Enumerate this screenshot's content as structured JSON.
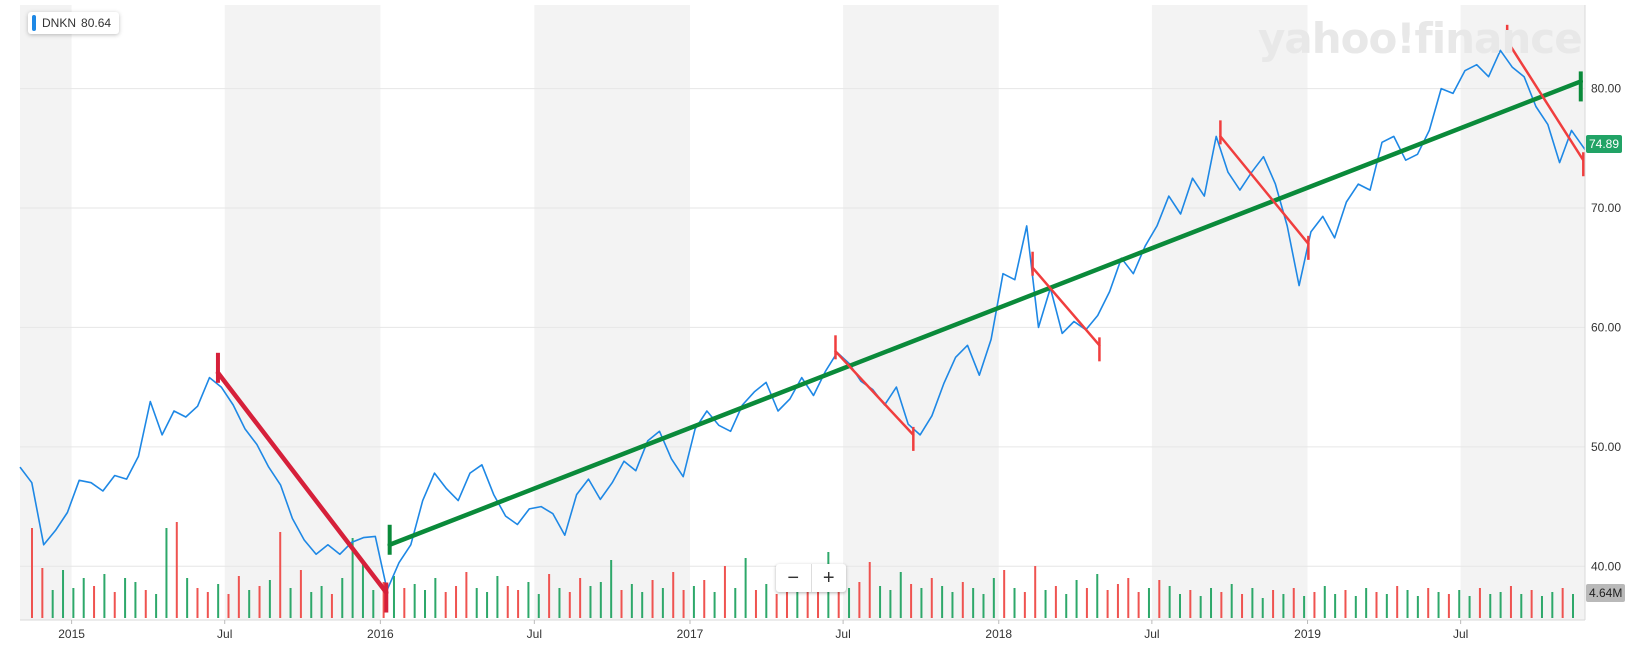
{
  "legend": {
    "symbol": "DNKN",
    "value": "80.64"
  },
  "watermark": "yahoo!finance",
  "zoom": {
    "minus_label": "−",
    "plus_label": "+"
  },
  "badges": {
    "last_price": "74.89",
    "last_volume": "4.64M"
  },
  "colors": {
    "price_line": "#1e88e5",
    "volume_up": "#2ea86a",
    "volume_down": "#ef5350",
    "trend_up": "#0a8a3a",
    "trend_down": "#d6203a",
    "band": "#f3f3f3"
  },
  "chart_data": {
    "type": "line",
    "ticker": "DNKN",
    "y_axis": {
      "ticks": [
        40,
        50,
        60,
        70,
        80
      ],
      "tick_labels": [
        "40.00",
        "50.00",
        "60.00",
        "70.00",
        "80.00"
      ],
      "range": [
        35.5,
        87
      ]
    },
    "x_axis": {
      "range": [
        "2014-11-01",
        "2019-11-25"
      ],
      "ticks": [
        {
          "date": "2015-01-01",
          "label": "2015"
        },
        {
          "date": "2015-07-01",
          "label": "Jul"
        },
        {
          "date": "2016-01-01",
          "label": "2016"
        },
        {
          "date": "2016-07-01",
          "label": "Jul"
        },
        {
          "date": "2017-01-01",
          "label": "2017"
        },
        {
          "date": "2017-07-01",
          "label": "Jul"
        },
        {
          "date": "2018-01-01",
          "label": "2018"
        },
        {
          "date": "2018-07-01",
          "label": "Jul"
        },
        {
          "date": "2019-01-01",
          "label": "2019"
        },
        {
          "date": "2019-07-01",
          "label": "Jul"
        }
      ]
    },
    "price_series": [
      [
        "2014-11-01",
        48.3
      ],
      [
        "2014-11-15",
        47.0
      ],
      [
        "2014-11-29",
        41.8
      ],
      [
        "2014-12-13",
        43.0
      ],
      [
        "2014-12-27",
        44.5
      ],
      [
        "2015-01-10",
        47.2
      ],
      [
        "2015-01-24",
        47.0
      ],
      [
        "2015-02-07",
        46.3
      ],
      [
        "2015-02-21",
        47.6
      ],
      [
        "2015-03-07",
        47.3
      ],
      [
        "2015-03-21",
        49.2
      ],
      [
        "2015-04-04",
        53.8
      ],
      [
        "2015-04-18",
        51.0
      ],
      [
        "2015-05-02",
        53.0
      ],
      [
        "2015-05-16",
        52.5
      ],
      [
        "2015-05-30",
        53.4
      ],
      [
        "2015-06-13",
        55.8
      ],
      [
        "2015-06-27",
        55.0
      ],
      [
        "2015-07-11",
        53.5
      ],
      [
        "2015-07-25",
        51.5
      ],
      [
        "2015-08-08",
        50.2
      ],
      [
        "2015-08-22",
        48.3
      ],
      [
        "2015-09-05",
        46.8
      ],
      [
        "2015-09-19",
        44.0
      ],
      [
        "2015-10-03",
        42.2
      ],
      [
        "2015-10-17",
        41.0
      ],
      [
        "2015-10-31",
        41.8
      ],
      [
        "2015-11-14",
        41.0
      ],
      [
        "2015-11-28",
        42.0
      ],
      [
        "2015-12-12",
        42.4
      ],
      [
        "2015-12-26",
        42.5
      ],
      [
        "2016-01-09",
        38.0
      ],
      [
        "2016-01-23",
        40.3
      ],
      [
        "2016-02-06",
        41.8
      ],
      [
        "2016-02-20",
        45.5
      ],
      [
        "2016-03-05",
        47.8
      ],
      [
        "2016-03-19",
        46.5
      ],
      [
        "2016-04-02",
        45.5
      ],
      [
        "2016-04-16",
        47.8
      ],
      [
        "2016-04-30",
        48.5
      ],
      [
        "2016-05-14",
        46.0
      ],
      [
        "2016-05-28",
        44.2
      ],
      [
        "2016-06-11",
        43.5
      ],
      [
        "2016-06-25",
        44.8
      ],
      [
        "2016-07-09",
        45.0
      ],
      [
        "2016-07-23",
        44.4
      ],
      [
        "2016-08-06",
        42.6
      ],
      [
        "2016-08-20",
        46.0
      ],
      [
        "2016-09-03",
        47.3
      ],
      [
        "2016-09-17",
        45.6
      ],
      [
        "2016-10-01",
        47.0
      ],
      [
        "2016-10-15",
        48.8
      ],
      [
        "2016-10-29",
        48.0
      ],
      [
        "2016-11-12",
        50.5
      ],
      [
        "2016-11-26",
        51.3
      ],
      [
        "2016-12-10",
        49.0
      ],
      [
        "2016-12-24",
        47.5
      ],
      [
        "2017-01-07",
        51.5
      ],
      [
        "2017-01-21",
        53.0
      ],
      [
        "2017-02-04",
        51.8
      ],
      [
        "2017-02-18",
        51.3
      ],
      [
        "2017-03-04",
        53.5
      ],
      [
        "2017-03-18",
        54.6
      ],
      [
        "2017-04-01",
        55.4
      ],
      [
        "2017-04-15",
        53.0
      ],
      [
        "2017-04-29",
        54.0
      ],
      [
        "2017-05-13",
        55.8
      ],
      [
        "2017-05-27",
        54.3
      ],
      [
        "2017-06-10",
        56.3
      ],
      [
        "2017-06-24",
        57.9
      ],
      [
        "2017-07-08",
        57.0
      ],
      [
        "2017-07-22",
        55.5
      ],
      [
        "2017-08-05",
        54.8
      ],
      [
        "2017-08-19",
        53.5
      ],
      [
        "2017-09-02",
        55.0
      ],
      [
        "2017-09-16",
        51.9
      ],
      [
        "2017-09-30",
        51.0
      ],
      [
        "2017-10-14",
        52.6
      ],
      [
        "2017-10-28",
        55.3
      ],
      [
        "2017-11-11",
        57.5
      ],
      [
        "2017-11-25",
        58.5
      ],
      [
        "2017-12-09",
        56.0
      ],
      [
        "2017-12-23",
        59.0
      ],
      [
        "2018-01-06",
        64.5
      ],
      [
        "2018-01-20",
        64.0
      ],
      [
        "2018-02-03",
        68.5
      ],
      [
        "2018-02-17",
        60.0
      ],
      [
        "2018-03-03",
        63.3
      ],
      [
        "2018-03-17",
        59.5
      ],
      [
        "2018-03-31",
        60.5
      ],
      [
        "2018-04-14",
        59.8
      ],
      [
        "2018-04-28",
        61.0
      ],
      [
        "2018-05-12",
        63.0
      ],
      [
        "2018-05-26",
        65.8
      ],
      [
        "2018-06-09",
        64.5
      ],
      [
        "2018-06-23",
        66.8
      ],
      [
        "2018-07-07",
        68.5
      ],
      [
        "2018-07-21",
        71.0
      ],
      [
        "2018-08-04",
        69.5
      ],
      [
        "2018-08-18",
        72.5
      ],
      [
        "2018-09-01",
        71.0
      ],
      [
        "2018-09-15",
        76.0
      ],
      [
        "2018-09-29",
        73.0
      ],
      [
        "2018-10-13",
        71.5
      ],
      [
        "2018-10-27",
        73.0
      ],
      [
        "2018-11-10",
        74.3
      ],
      [
        "2018-11-24",
        72.0
      ],
      [
        "2018-12-08",
        68.5
      ],
      [
        "2018-12-22",
        63.5
      ],
      [
        "2019-01-05",
        68.0
      ],
      [
        "2019-01-19",
        69.3
      ],
      [
        "2019-02-02",
        67.5
      ],
      [
        "2019-02-16",
        70.5
      ],
      [
        "2019-03-02",
        72.0
      ],
      [
        "2019-03-16",
        71.5
      ],
      [
        "2019-03-30",
        75.5
      ],
      [
        "2019-04-13",
        76.0
      ],
      [
        "2019-04-27",
        74.0
      ],
      [
        "2019-05-11",
        74.5
      ],
      [
        "2019-05-25",
        76.5
      ],
      [
        "2019-06-08",
        80.0
      ],
      [
        "2019-06-22",
        79.6
      ],
      [
        "2019-07-06",
        81.5
      ],
      [
        "2019-07-20",
        82.0
      ],
      [
        "2019-08-03",
        81.0
      ],
      [
        "2019-08-17",
        83.2
      ],
      [
        "2019-08-31",
        81.8
      ],
      [
        "2019-09-14",
        81.0
      ],
      [
        "2019-09-28",
        78.5
      ],
      [
        "2019-10-12",
        77.0
      ],
      [
        "2019-10-26",
        73.8
      ],
      [
        "2019-11-09",
        76.5
      ],
      [
        "2019-11-25",
        74.89
      ]
    ],
    "volume": {
      "unit": "M",
      "bars": [
        [
          0,
          4.5,
          "down"
        ],
        [
          1,
          2.5,
          "down"
        ],
        [
          2,
          1.4,
          "up"
        ],
        [
          3,
          2.4,
          "up"
        ],
        [
          4,
          1.5,
          "up"
        ],
        [
          5,
          2.0,
          "up"
        ],
        [
          6,
          1.6,
          "down"
        ],
        [
          7,
          2.2,
          "up"
        ],
        [
          8,
          1.3,
          "down"
        ],
        [
          9,
          2.0,
          "up"
        ],
        [
          10,
          1.8,
          "up"
        ],
        [
          11,
          1.4,
          "down"
        ],
        [
          12,
          1.2,
          "up"
        ],
        [
          13,
          4.5,
          "up"
        ],
        [
          14,
          4.8,
          "down"
        ],
        [
          15,
          2.0,
          "up"
        ],
        [
          16,
          1.5,
          "down"
        ],
        [
          17,
          1.3,
          "down"
        ],
        [
          18,
          1.7,
          "up"
        ],
        [
          19,
          1.2,
          "down"
        ],
        [
          20,
          2.1,
          "down"
        ],
        [
          21,
          1.4,
          "up"
        ],
        [
          22,
          1.6,
          "down"
        ],
        [
          23,
          1.9,
          "up"
        ],
        [
          24,
          4.3,
          "down"
        ],
        [
          25,
          1.5,
          "up"
        ],
        [
          26,
          2.4,
          "down"
        ],
        [
          27,
          1.3,
          "up"
        ],
        [
          28,
          1.6,
          "up"
        ],
        [
          29,
          1.2,
          "down"
        ],
        [
          30,
          2.0,
          "up"
        ],
        [
          31,
          4.0,
          "up"
        ],
        [
          32,
          2.7,
          "up"
        ],
        [
          33,
          1.4,
          "up"
        ],
        [
          34,
          1.8,
          "down"
        ],
        [
          35,
          2.1,
          "up"
        ],
        [
          36,
          1.5,
          "down"
        ],
        [
          37,
          1.7,
          "up"
        ],
        [
          38,
          1.4,
          "up"
        ],
        [
          39,
          2.0,
          "up"
        ],
        [
          40,
          1.3,
          "down"
        ],
        [
          41,
          1.6,
          "down"
        ],
        [
          42,
          2.3,
          "down"
        ],
        [
          43,
          1.5,
          "up"
        ],
        [
          44,
          1.3,
          "up"
        ],
        [
          45,
          2.1,
          "up"
        ],
        [
          46,
          1.6,
          "down"
        ],
        [
          47,
          1.4,
          "down"
        ],
        [
          48,
          1.8,
          "up"
        ],
        [
          49,
          1.2,
          "up"
        ],
        [
          50,
          2.2,
          "down"
        ],
        [
          51,
          1.5,
          "up"
        ],
        [
          52,
          1.3,
          "down"
        ],
        [
          53,
          2.0,
          "down"
        ],
        [
          54,
          1.6,
          "up"
        ],
        [
          55,
          1.8,
          "up"
        ],
        [
          56,
          2.9,
          "up"
        ],
        [
          57,
          1.4,
          "down"
        ],
        [
          58,
          1.7,
          "up"
        ],
        [
          59,
          1.3,
          "up"
        ],
        [
          60,
          1.9,
          "down"
        ],
        [
          61,
          1.5,
          "up"
        ],
        [
          62,
          2.3,
          "down"
        ],
        [
          63,
          1.4,
          "down"
        ],
        [
          64,
          1.6,
          "up"
        ],
        [
          65,
          1.9,
          "down"
        ],
        [
          66,
          1.3,
          "up"
        ],
        [
          67,
          2.6,
          "down"
        ],
        [
          68,
          1.5,
          "up"
        ],
        [
          69,
          3.0,
          "up"
        ],
        [
          70,
          1.4,
          "down"
        ],
        [
          71,
          1.7,
          "up"
        ],
        [
          72,
          1.2,
          "down"
        ],
        [
          73,
          1.5,
          "down"
        ],
        [
          74,
          1.8,
          "up"
        ],
        [
          75,
          1.3,
          "down"
        ],
        [
          76,
          2.1,
          "down"
        ],
        [
          77,
          3.3,
          "up"
        ],
        [
          78,
          2.2,
          "down"
        ],
        [
          79,
          1.5,
          "up"
        ],
        [
          80,
          1.8,
          "down"
        ],
        [
          81,
          2.8,
          "down"
        ],
        [
          82,
          1.6,
          "up"
        ],
        [
          83,
          1.4,
          "up"
        ],
        [
          84,
          2.3,
          "up"
        ],
        [
          85,
          1.7,
          "down"
        ],
        [
          86,
          1.5,
          "up"
        ],
        [
          87,
          2.0,
          "down"
        ],
        [
          88,
          1.6,
          "up"
        ],
        [
          89,
          1.3,
          "up"
        ],
        [
          90,
          1.8,
          "down"
        ],
        [
          91,
          1.5,
          "up"
        ],
        [
          92,
          1.2,
          "up"
        ],
        [
          93,
          2.0,
          "up"
        ],
        [
          94,
          2.4,
          "down"
        ],
        [
          95,
          1.5,
          "up"
        ],
        [
          96,
          1.3,
          "down"
        ],
        [
          97,
          2.6,
          "down"
        ],
        [
          98,
          1.4,
          "up"
        ],
        [
          99,
          1.6,
          "down"
        ],
        [
          100,
          1.2,
          "up"
        ],
        [
          101,
          1.9,
          "up"
        ],
        [
          102,
          1.5,
          "down"
        ],
        [
          103,
          2.2,
          "up"
        ],
        [
          104,
          1.4,
          "down"
        ],
        [
          105,
          1.7,
          "down"
        ],
        [
          106,
          2.0,
          "down"
        ],
        [
          107,
          1.3,
          "down"
        ],
        [
          108,
          1.5,
          "up"
        ],
        [
          109,
          1.9,
          "down"
        ],
        [
          110,
          1.6,
          "up"
        ],
        [
          111,
          1.2,
          "up"
        ],
        [
          112,
          1.4,
          "down"
        ],
        [
          113,
          1.1,
          "up"
        ],
        [
          114,
          1.5,
          "up"
        ],
        [
          115,
          1.3,
          "down"
        ],
        [
          116,
          1.7,
          "up"
        ],
        [
          117,
          1.2,
          "down"
        ],
        [
          118,
          1.5,
          "up"
        ],
        [
          119,
          1.0,
          "up"
        ],
        [
          120,
          1.4,
          "down"
        ],
        [
          121,
          1.2,
          "up"
        ],
        [
          122,
          1.5,
          "down"
        ],
        [
          123,
          1.1,
          "up"
        ],
        [
          124,
          1.3,
          "down"
        ],
        [
          125,
          1.6,
          "up"
        ],
        [
          126,
          1.2,
          "up"
        ],
        [
          127,
          1.4,
          "down"
        ],
        [
          128,
          1.1,
          "up"
        ],
        [
          129,
          1.5,
          "up"
        ],
        [
          130,
          1.3,
          "down"
        ],
        [
          131,
          1.2,
          "up"
        ],
        [
          132,
          1.6,
          "down"
        ],
        [
          133,
          1.4,
          "up"
        ],
        [
          134,
          1.1,
          "up"
        ],
        [
          135,
          1.5,
          "down"
        ],
        [
          136,
          1.3,
          "up"
        ],
        [
          137,
          1.2,
          "down"
        ],
        [
          138,
          1.4,
          "up"
        ],
        [
          139,
          1.1,
          "up"
        ],
        [
          140,
          1.5,
          "down"
        ],
        [
          141,
          1.2,
          "up"
        ],
        [
          142,
          1.3,
          "up"
        ],
        [
          143,
          1.6,
          "down"
        ],
        [
          144,
          1.2,
          "up"
        ],
        [
          145,
          1.4,
          "down"
        ],
        [
          146,
          1.1,
          "up"
        ],
        [
          147,
          1.3,
          "up"
        ],
        [
          148,
          1.5,
          "down"
        ],
        [
          149,
          1.2,
          "up"
        ]
      ]
    },
    "trend_lines": [
      {
        "kind": "down",
        "start": [
          "2015-06-23",
          56.2
        ],
        "end": [
          "2016-01-08",
          37.8
        ]
      },
      {
        "kind": "up",
        "start": [
          "2016-01-12",
          41.8
        ],
        "end": [
          "2019-11-20",
          80.6
        ]
      }
    ],
    "down_segments": [
      {
        "start": [
          "2017-06-22",
          58.0
        ],
        "end": [
          "2017-09-22",
          51.0
        ]
      },
      {
        "start": [
          "2018-02-10",
          65.0
        ],
        "end": [
          "2018-04-30",
          58.5
        ]
      },
      {
        "start": [
          "2018-09-20",
          76.0
        ],
        "end": [
          "2019-01-02",
          67.0
        ]
      },
      {
        "start": [
          "2019-08-25",
          84.0
        ],
        "end": [
          "2019-11-23",
          74.0
        ]
      }
    ]
  }
}
